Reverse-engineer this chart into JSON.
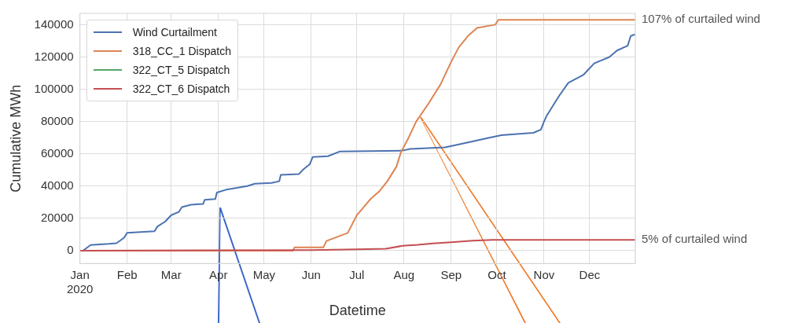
{
  "chart_data": {
    "type": "line",
    "xlabel": "Datetime",
    "ylabel": "Cumulative MWh",
    "xlim": [
      "2020-01-01",
      "2020-12-31"
    ],
    "ylim": [
      -8000,
      147000
    ],
    "xticks": [
      {
        "value": "2020-01-01",
        "label": "Jan\n2020"
      },
      {
        "value": "2020-02-01",
        "label": "Feb"
      },
      {
        "value": "2020-03-01",
        "label": "Mar"
      },
      {
        "value": "2020-04-01",
        "label": "Apr"
      },
      {
        "value": "2020-05-01",
        "label": "May"
      },
      {
        "value": "2020-06-01",
        "label": "Jun"
      },
      {
        "value": "2020-07-01",
        "label": "Jul"
      },
      {
        "value": "2020-08-01",
        "label": "Aug"
      },
      {
        "value": "2020-09-01",
        "label": "Sep"
      },
      {
        "value": "2020-10-01",
        "label": "Oct"
      },
      {
        "value": "2020-11-01",
        "label": "Nov"
      },
      {
        "value": "2020-12-01",
        "label": "Dec"
      }
    ],
    "yticks": [
      0,
      20000,
      40000,
      60000,
      80000,
      100000,
      120000,
      140000
    ],
    "grid": true,
    "legend": "top left",
    "marker": "none",
    "line_style": "solid",
    "series": [
      {
        "name": "Wind Curtailment",
        "color": "#4c72b0",
        "x": [
          "2020-01-03",
          "2020-01-08",
          "2020-01-20",
          "2020-01-25",
          "2020-01-30",
          "2020-02-01",
          "2020-02-19",
          "2020-02-21",
          "2020-02-26",
          "2020-03-01",
          "2020-03-06",
          "2020-03-08",
          "2020-03-14",
          "2020-03-22",
          "2020-03-23",
          "2020-03-30",
          "2020-03-31",
          "2020-04-07",
          "2020-04-20",
          "2020-04-25",
          "2020-05-06",
          "2020-05-11",
          "2020-05-12",
          "2020-05-24",
          "2020-05-27",
          "2020-05-31",
          "2020-06-02",
          "2020-06-12",
          "2020-06-20",
          "2020-07-31",
          "2020-08-05",
          "2020-08-28",
          "2020-09-12",
          "2020-09-26",
          "2020-10-04",
          "2020-10-25",
          "2020-10-30",
          "2020-11-01",
          "2020-11-03",
          "2020-11-11",
          "2020-11-17",
          "2020-11-27",
          "2020-12-04",
          "2020-12-14",
          "2020-12-19",
          "2020-12-26",
          "2020-12-28",
          "2020-12-31"
        ],
        "values": [
          0,
          3500,
          4200,
          4600,
          8000,
          11000,
          12000,
          15000,
          18000,
          22000,
          24000,
          27000,
          28500,
          29000,
          31500,
          32000,
          36000,
          38000,
          40000,
          41500,
          42000,
          43000,
          47000,
          47500,
          50500,
          53500,
          58000,
          58500,
          61500,
          62000,
          63000,
          64000,
          67000,
          70000,
          71500,
          73000,
          75000,
          80000,
          84000,
          96000,
          104000,
          109000,
          116000,
          120000,
          124000,
          127000,
          133000,
          134000
        ]
      },
      {
        "name": "318_CC_1 Dispatch",
        "color": "#dd8452",
        "x": [
          "2020-01-01",
          "2020-05-20",
          "2020-05-21",
          "2020-06-09",
          "2020-06-11",
          "2020-06-25",
          "2020-07-01",
          "2020-07-10",
          "2020-07-16",
          "2020-07-21",
          "2020-07-27",
          "2020-07-30",
          "2020-08-04",
          "2020-08-09",
          "2020-08-17",
          "2020-08-25",
          "2020-09-01",
          "2020-09-06",
          "2020-09-12",
          "2020-09-18",
          "2020-09-30",
          "2020-10-02",
          "2020-12-31"
        ],
        "values": [
          0,
          0,
          2000,
          2000,
          6000,
          11000,
          22000,
          32000,
          37000,
          43000,
          52000,
          61000,
          70000,
          80000,
          91000,
          103000,
          117000,
          126000,
          133000,
          138000,
          140000,
          143000,
          143000
        ]
      },
      {
        "name": "322_CT_5 Dispatch",
        "color": "#55a868"
      },
      {
        "name": "322_CT_6 Dispatch",
        "color": "#c44e52",
        "x": [
          "2020-01-01",
          "2020-06-01",
          "2020-07-01",
          "2020-07-20",
          "2020-07-31",
          "2020-08-10",
          "2020-08-20",
          "2020-09-01",
          "2020-09-15",
          "2020-09-28",
          "2020-12-31"
        ],
        "values": [
          0,
          400,
          800,
          1200,
          3000,
          3600,
          4500,
          5200,
          6200,
          6700,
          6700
        ]
      }
    ],
    "annotations": [
      {
        "text": "107% of curtailed wind",
        "x": "2020-12-31",
        "y": 143000
      },
      {
        "text": "5% of curtailed wind",
        "x": "2020-12-31",
        "y": 6700
      }
    ]
  }
}
